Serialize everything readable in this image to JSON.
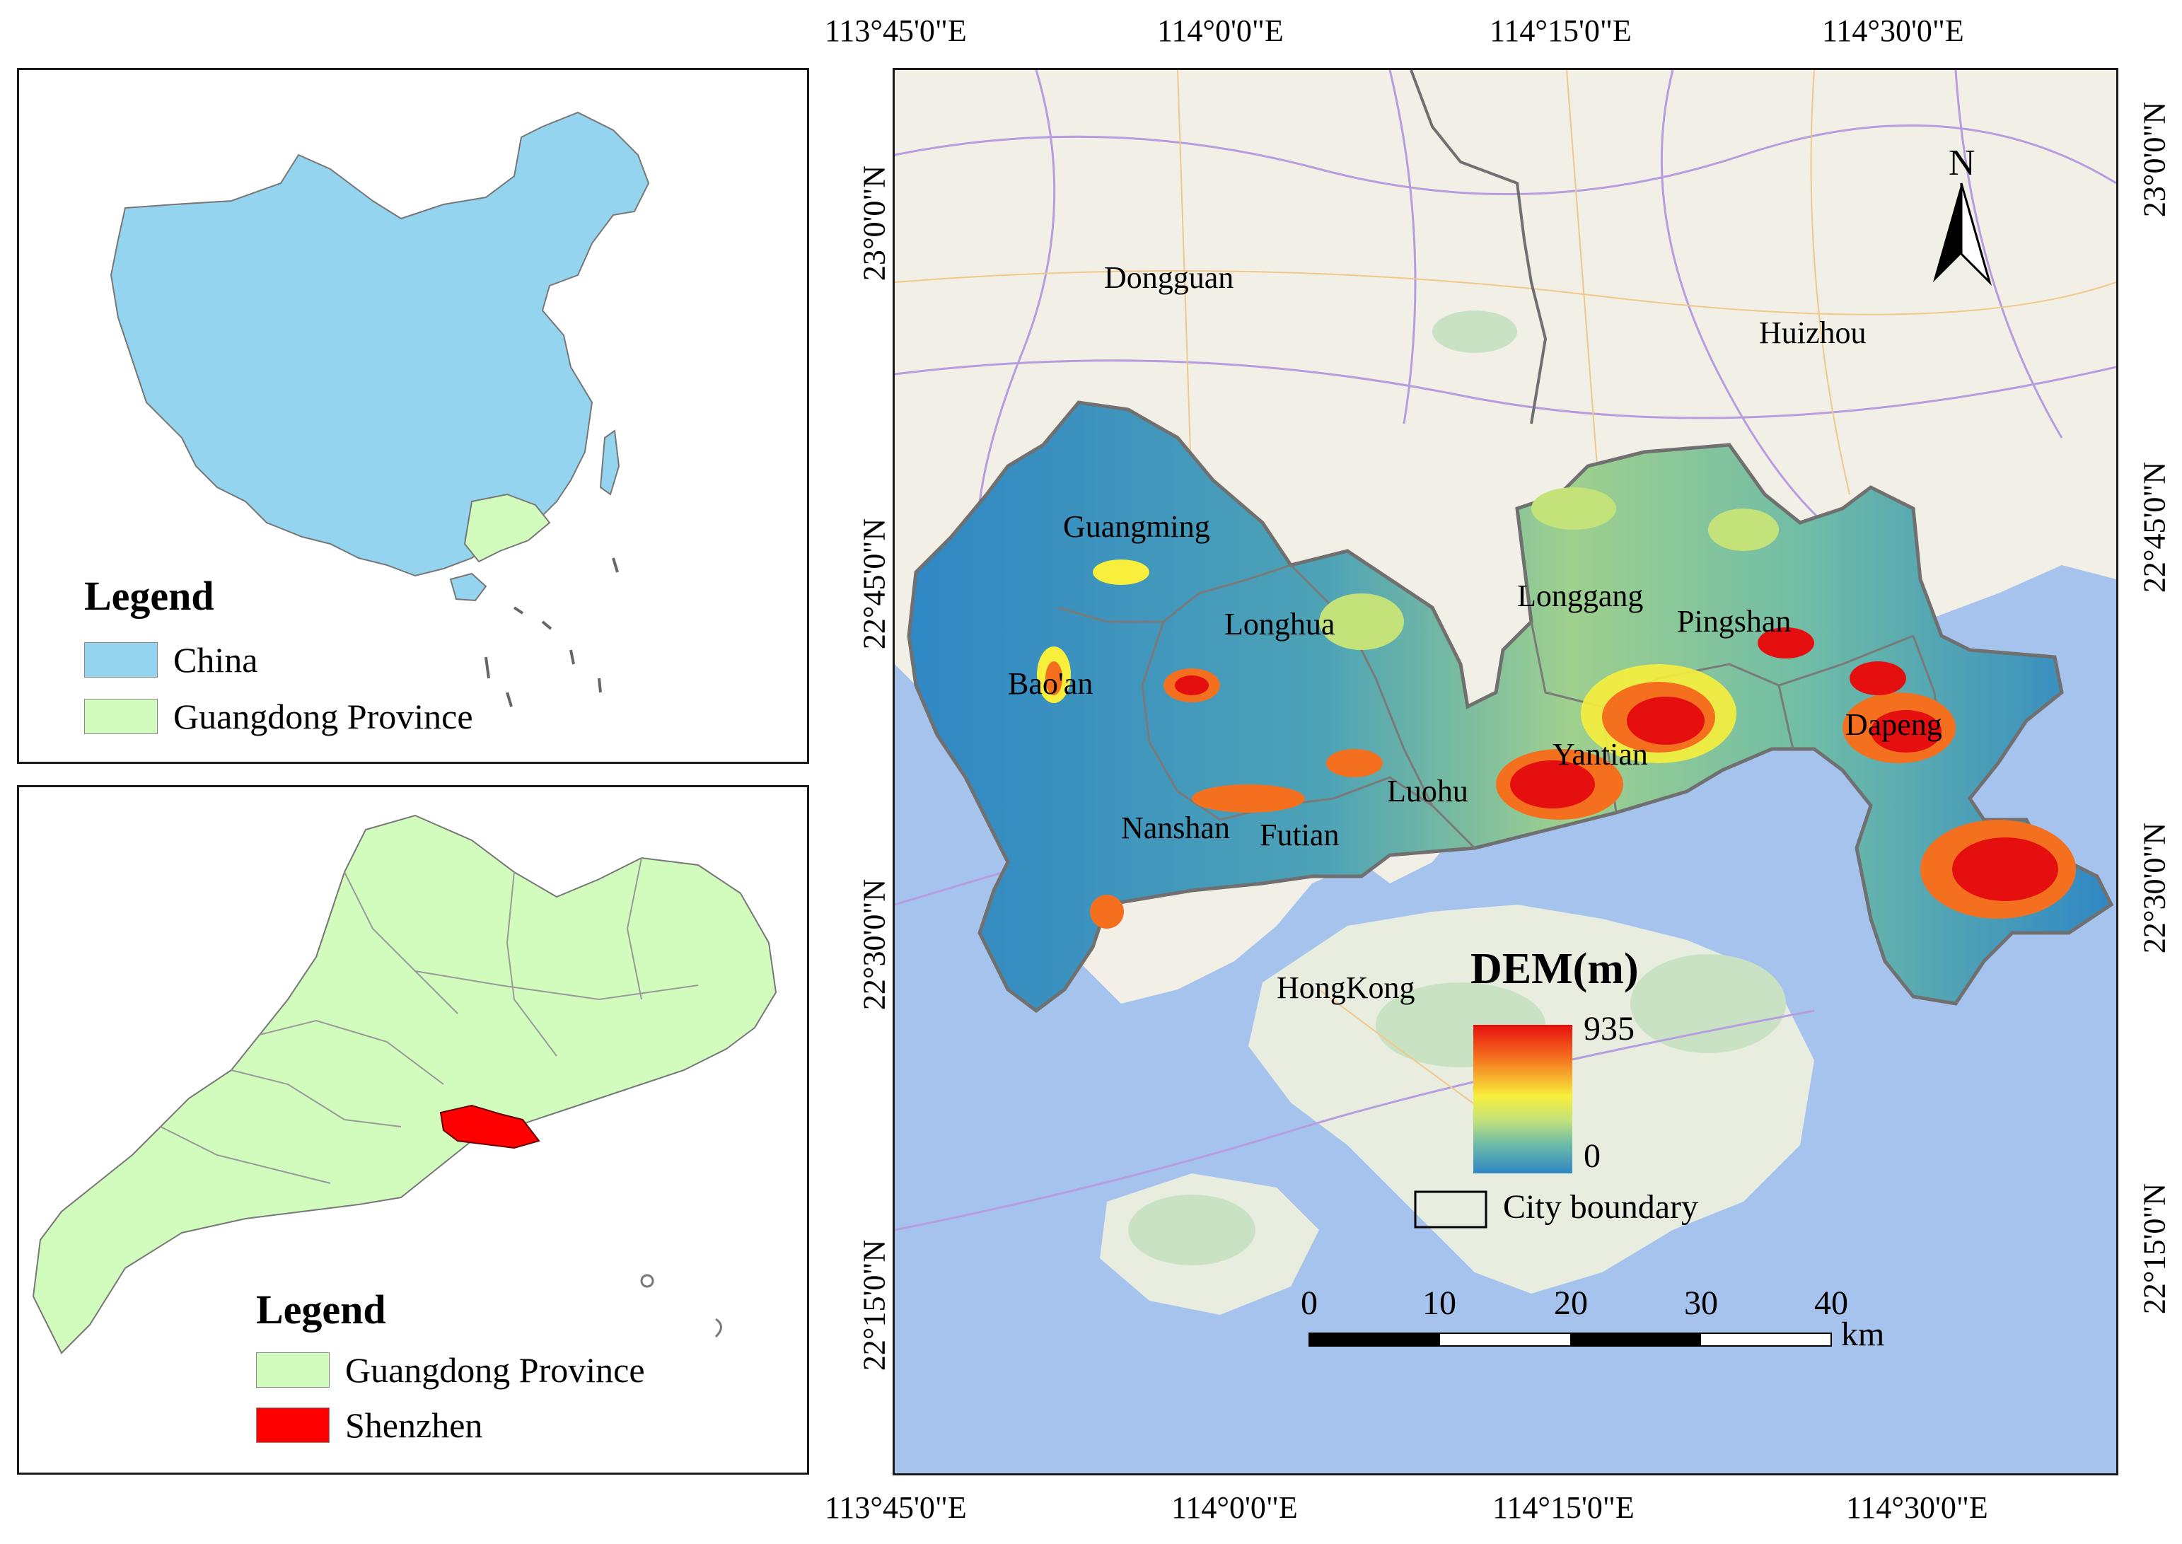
{
  "china_panel": {
    "legend_title": "Legend",
    "items": [
      {
        "label": "China",
        "color": "#94d4ee"
      },
      {
        "label": "Guangdong Province",
        "color": "#d2fbbe"
      }
    ]
  },
  "guangdong_panel": {
    "legend_title": "Legend",
    "items": [
      {
        "label": "Guangdong Province",
        "color": "#d2fbbe"
      },
      {
        "label": "Shenzhen",
        "color": "#ff0000"
      }
    ]
  },
  "main_map": {
    "lon_ticks": [
      "113°45'0\"E",
      "114°0'0\"E",
      "114°15'0\"E",
      "114°30'0\"E"
    ],
    "lat_ticks": [
      "23°0'0\"N",
      "22°45'0\"N",
      "22°30'0\"N",
      "22°15'0\"N"
    ],
    "cities": [
      "Dongguan",
      "Huizhou",
      "HongKong"
    ],
    "districts": [
      "Guangming",
      "Longhua",
      "Bao'an",
      "Longgang",
      "Pingshan",
      "Dapeng",
      "Yantian",
      "Luohu",
      "Futian",
      "Nanshan"
    ],
    "north_label": "N",
    "dem": {
      "title": "DEM(m)",
      "max": "935",
      "min": "0"
    },
    "boundary_label": "City boundary",
    "scale": {
      "ticks": [
        "0",
        "10",
        "20",
        "30",
        "40"
      ],
      "unit": "km"
    },
    "colors": {
      "sea": "#a6c3ee",
      "land": "#f1efe6",
      "dem_low": "#2f87c4",
      "dem_mid": "#f7ef3c",
      "dem_high": "#e60f0f"
    }
  }
}
